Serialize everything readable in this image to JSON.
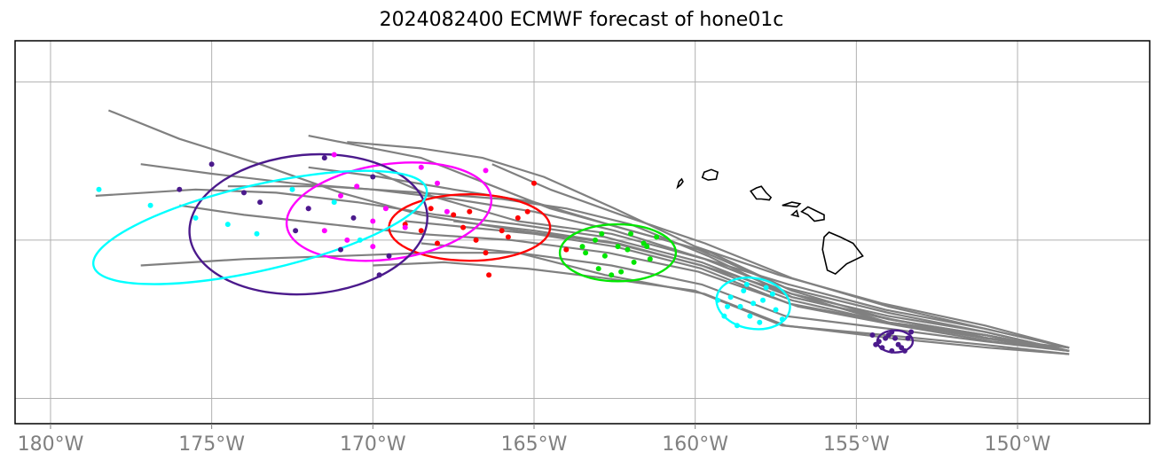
{
  "title": "2024082400 ECMWF forecast of hone01c",
  "chart_data": {
    "type": "map",
    "title": "2024082400 ECMWF forecast of hone01c",
    "projection": "PlateCarree",
    "xlim": [
      -181.1,
      -145.9
    ],
    "ylim": [
      14.2,
      26.3
    ],
    "x_ticks": [
      -180,
      -175,
      -170,
      -165,
      -160,
      -155,
      -150
    ],
    "x_tick_labels": [
      "180°W",
      "175°W",
      "170°W",
      "165°W",
      "160°W",
      "155°W",
      "150°W"
    ],
    "y_gridlines": [
      15,
      20,
      25
    ],
    "grid": true,
    "colors": {
      "track": "#808080",
      "grid": "#b0b0b0",
      "coast": "#000000",
      "day1": "#4b1a8c",
      "day2": "#00ffff",
      "day3": "#00e600",
      "day4": "#ff0000",
      "day5": "#ff00ff",
      "day6": "#4b1a8c",
      "day7": "#00ffff"
    },
    "genesis_point": [
      -148.4,
      16.5
    ],
    "tracks": [
      [
        [
          -148.4,
          16.5
        ],
        [
          -151.0,
          17.0
        ],
        [
          -154.0,
          17.4
        ],
        [
          -157.0,
          18.1
        ],
        [
          -159.8,
          19.2
        ],
        [
          -162.5,
          19.9
        ],
        [
          -165.5,
          20.3
        ],
        [
          -168.5,
          20.8
        ],
        [
          -171.0,
          21.5
        ],
        [
          -173.5,
          22.4
        ],
        [
          -176.0,
          23.2
        ],
        [
          -178.2,
          24.1
        ]
      ],
      [
        [
          -148.4,
          16.5
        ],
        [
          -151.0,
          17.1
        ],
        [
          -154.0,
          17.6
        ],
        [
          -157.0,
          18.3
        ],
        [
          -159.7,
          19.4
        ],
        [
          -162.6,
          20.2
        ],
        [
          -165.5,
          20.6
        ],
        [
          -168.2,
          21.4
        ],
        [
          -170.0,
          22.2
        ]
      ],
      [
        [
          -148.4,
          16.5
        ],
        [
          -150.8,
          16.8
        ],
        [
          -153.7,
          17.3
        ],
        [
          -156.8,
          17.9
        ],
        [
          -159.9,
          19.0
        ],
        [
          -162.7,
          19.6
        ],
        [
          -165.7,
          20.0
        ],
        [
          -168.6,
          20.2
        ],
        [
          -171.3,
          20.5
        ],
        [
          -174.0,
          20.8
        ],
        [
          -176.0,
          21.1
        ]
      ],
      [
        [
          -148.4,
          16.6
        ],
        [
          -151.0,
          17.2
        ],
        [
          -154.1,
          17.8
        ],
        [
          -157.1,
          18.6
        ],
        [
          -160.0,
          19.5
        ],
        [
          -162.5,
          20.3
        ],
        [
          -165.0,
          20.9
        ],
        [
          -167.5,
          21.3
        ],
        [
          -170.0,
          21.6
        ],
        [
          -172.5,
          21.8
        ],
        [
          -175.0,
          22.1
        ],
        [
          -177.2,
          22.4
        ]
      ],
      [
        [
          -148.4,
          16.6
        ],
        [
          -150.9,
          16.9
        ],
        [
          -153.9,
          17.5
        ],
        [
          -157.0,
          18.2
        ],
        [
          -159.8,
          19.3
        ],
        [
          -162.8,
          20.1
        ],
        [
          -165.5,
          20.5
        ],
        [
          -168.0,
          20.8
        ],
        [
          -170.5,
          21.2
        ],
        [
          -173.0,
          21.5
        ],
        [
          -175.5,
          21.6
        ],
        [
          -178.6,
          21.4
        ]
      ],
      [
        [
          -148.4,
          16.5
        ],
        [
          -151.0,
          16.8
        ],
        [
          -154.0,
          17.2
        ],
        [
          -157.2,
          17.6
        ],
        [
          -159.8,
          18.6
        ],
        [
          -162.6,
          19.2
        ],
        [
          -165.5,
          19.6
        ],
        [
          -168.3,
          19.6
        ],
        [
          -171.0,
          19.5
        ],
        [
          -174.0,
          19.4
        ],
        [
          -177.2,
          19.2
        ]
      ],
      [
        [
          -148.4,
          16.4
        ],
        [
          -151.1,
          16.7
        ],
        [
          -154.1,
          17.0
        ],
        [
          -157.3,
          17.3
        ],
        [
          -160.0,
          18.4
        ],
        [
          -162.8,
          18.8
        ],
        [
          -165.2,
          19.1
        ],
        [
          -167.8,
          19.3
        ],
        [
          -170.0,
          19.2
        ]
      ],
      [
        [
          -148.4,
          16.5
        ],
        [
          -151.0,
          17.0
        ],
        [
          -154.0,
          17.5
        ],
        [
          -157.0,
          18.4
        ],
        [
          -159.5,
          19.6
        ],
        [
          -162.0,
          20.3
        ],
        [
          -164.5,
          21.0
        ],
        [
          -166.5,
          21.8
        ],
        [
          -168.5,
          22.6
        ],
        [
          -170.5,
          23.0
        ],
        [
          -172.0,
          23.3
        ]
      ],
      [
        [
          -148.4,
          16.6
        ],
        [
          -151.0,
          17.3
        ],
        [
          -154.2,
          18.0
        ],
        [
          -157.4,
          18.9
        ],
        [
          -160.0,
          19.8
        ],
        [
          -162.5,
          21.0
        ],
        [
          -164.7,
          22.0
        ],
        [
          -166.6,
          22.6
        ],
        [
          -168.5,
          22.9
        ],
        [
          -170.8,
          23.1
        ]
      ],
      [
        [
          -148.4,
          16.5
        ],
        [
          -151.0,
          17.1
        ],
        [
          -154.0,
          17.7
        ],
        [
          -157.2,
          18.5
        ],
        [
          -159.9,
          19.7
        ],
        [
          -162.7,
          20.5
        ],
        [
          -165.0,
          21.2
        ],
        [
          -167.5,
          21.6
        ],
        [
          -169.8,
          22.0
        ],
        [
          -172.0,
          22.3
        ]
      ],
      [
        [
          -148.4,
          16.5
        ],
        [
          -151.0,
          16.9
        ],
        [
          -154.0,
          17.4
        ],
        [
          -157.1,
          18.0
        ],
        [
          -159.8,
          19.1
        ],
        [
          -162.5,
          19.8
        ],
        [
          -165.0,
          20.2
        ],
        [
          -167.0,
          20.4
        ],
        [
          -169.0,
          20.6
        ]
      ],
      [
        [
          -148.4,
          16.5
        ],
        [
          -151.0,
          17.0
        ],
        [
          -154.0,
          17.5
        ],
        [
          -157.0,
          18.2
        ],
        [
          -159.6,
          19.5
        ],
        [
          -162.0,
          20.5
        ],
        [
          -164.0,
          21.0
        ],
        [
          -166.0,
          21.3
        ],
        [
          -168.5,
          21.5
        ],
        [
          -171.5,
          21.7
        ],
        [
          -174.5,
          21.7
        ]
      ],
      [
        [
          -148.4,
          16.4
        ],
        [
          -150.9,
          16.6
        ],
        [
          -153.9,
          16.9
        ],
        [
          -157.2,
          17.3
        ],
        [
          -159.7,
          18.3
        ],
        [
          -162.8,
          18.9
        ],
        [
          -165.5,
          19.6
        ],
        [
          -168.5,
          19.9
        ]
      ],
      [
        [
          -148.4,
          16.5
        ],
        [
          -151.0,
          17.0
        ],
        [
          -154.0,
          17.4
        ],
        [
          -157.0,
          18.3
        ],
        [
          -159.8,
          19.2
        ],
        [
          -162.4,
          19.9
        ],
        [
          -165.0,
          20.3
        ],
        [
          -167.5,
          20.6
        ]
      ],
      [
        [
          -148.4,
          16.6
        ],
        [
          -151.0,
          17.2
        ],
        [
          -154.0,
          17.9
        ],
        [
          -157.0,
          18.8
        ],
        [
          -159.7,
          19.9
        ],
        [
          -162.3,
          20.8
        ],
        [
          -164.5,
          21.6
        ],
        [
          -166.3,
          22.4
        ]
      ]
    ],
    "islands": [
      [
        [
          -160.55,
          21.67
        ],
        [
          -160.45,
          21.75
        ],
        [
          -160.38,
          21.85
        ],
        [
          -160.42,
          21.93
        ],
        [
          -160.5,
          21.85
        ],
        [
          -160.55,
          21.67
        ]
      ],
      [
        [
          -159.78,
          21.98
        ],
        [
          -159.6,
          21.9
        ],
        [
          -159.35,
          21.93
        ],
        [
          -159.3,
          22.15
        ],
        [
          -159.5,
          22.23
        ],
        [
          -159.72,
          22.15
        ],
        [
          -159.78,
          21.98
        ]
      ],
      [
        [
          -158.28,
          21.55
        ],
        [
          -158.1,
          21.3
        ],
        [
          -157.95,
          21.3
        ],
        [
          -157.7,
          21.27
        ],
        [
          -157.65,
          21.35
        ],
        [
          -157.8,
          21.5
        ],
        [
          -157.95,
          21.7
        ],
        [
          -158.1,
          21.65
        ],
        [
          -158.28,
          21.55
        ]
      ],
      [
        [
          -157.3,
          21.1
        ],
        [
          -157.05,
          21.08
        ],
        [
          -156.85,
          21.05
        ],
        [
          -156.75,
          21.15
        ],
        [
          -157.0,
          21.2
        ],
        [
          -157.3,
          21.1
        ]
      ],
      [
        [
          -157.0,
          20.8
        ],
        [
          -156.8,
          20.75
        ],
        [
          -156.85,
          20.93
        ],
        [
          -157.0,
          20.8
        ]
      ],
      [
        [
          -156.7,
          20.9
        ],
        [
          -156.5,
          20.8
        ],
        [
          -156.3,
          20.6
        ],
        [
          -156.0,
          20.65
        ],
        [
          -156.0,
          20.8
        ],
        [
          -156.3,
          20.95
        ],
        [
          -156.5,
          21.05
        ],
        [
          -156.7,
          20.9
        ]
      ],
      [
        [
          -156.05,
          19.7
        ],
        [
          -155.9,
          19.05
        ],
        [
          -155.65,
          18.93
        ],
        [
          -155.3,
          19.25
        ],
        [
          -154.8,
          19.5
        ],
        [
          -155.1,
          19.9
        ],
        [
          -155.5,
          20.1
        ],
        [
          -155.85,
          20.25
        ],
        [
          -156.0,
          20.1
        ],
        [
          -156.05,
          19.7
        ]
      ]
    ],
    "days": [
      {
        "color": "day1",
        "ellipse": {
          "cx": -153.8,
          "cy": 16.8,
          "rx": 0.55,
          "ry": 0.35,
          "angle": 0
        },
        "points": [
          [
            -154.5,
            17.0
          ],
          [
            -154.2,
            16.6
          ],
          [
            -154.0,
            17.0
          ],
          [
            -153.8,
            16.9
          ],
          [
            -153.6,
            16.6
          ],
          [
            -153.4,
            16.9
          ],
          [
            -153.3,
            17.1
          ],
          [
            -153.9,
            16.5
          ],
          [
            -154.3,
            16.8
          ],
          [
            -153.7,
            16.7
          ],
          [
            -153.5,
            16.5
          ],
          [
            -154.4,
            16.7
          ],
          [
            -153.9,
            17.1
          ],
          [
            -154.1,
            16.9
          ]
        ]
      },
      {
        "color": "day2",
        "ellipse": {
          "cx": -158.2,
          "cy": 18.0,
          "rx": 1.15,
          "ry": 0.8,
          "angle": 10
        },
        "points": [
          [
            -158.5,
            18.4
          ],
          [
            -158.2,
            18.0
          ],
          [
            -157.8,
            18.5
          ],
          [
            -159.1,
            17.6
          ],
          [
            -157.5,
            17.8
          ],
          [
            -158.9,
            18.2
          ],
          [
            -158.0,
            17.4
          ],
          [
            -158.6,
            17.9
          ],
          [
            -157.9,
            18.1
          ],
          [
            -158.3,
            17.6
          ],
          [
            -157.6,
            18.3
          ],
          [
            -159.3,
            18.1
          ],
          [
            -158.7,
            17.3
          ],
          [
            -157.3,
            17.5
          ],
          [
            -158.4,
            18.6
          ],
          [
            -159.0,
            17.9
          ]
        ]
      },
      {
        "color": "day3",
        "ellipse": {
          "cx": -162.4,
          "cy": 19.6,
          "rx": 1.8,
          "ry": 0.9,
          "angle": 0
        },
        "points": [
          [
            -163.5,
            19.8
          ],
          [
            -162.8,
            19.5
          ],
          [
            -161.5,
            19.8
          ],
          [
            -162.0,
            20.2
          ],
          [
            -163.0,
            19.1
          ],
          [
            -161.2,
            20.1
          ],
          [
            -162.4,
            19.8
          ],
          [
            -162.9,
            20.2
          ],
          [
            -161.9,
            19.3
          ],
          [
            -163.4,
            19.6
          ],
          [
            -162.6,
            18.9
          ],
          [
            -161.4,
            19.4
          ],
          [
            -162.1,
            19.7
          ],
          [
            -163.1,
            20.0
          ],
          [
            -162.3,
            19.0
          ],
          [
            -161.6,
            19.9
          ]
        ]
      },
      {
        "color": "day4",
        "ellipse": {
          "cx": -167.0,
          "cy": 20.4,
          "rx": 2.5,
          "ry": 1.05,
          "angle": 0
        },
        "points": [
          [
            -168.5,
            20.3
          ],
          [
            -167.5,
            20.8
          ],
          [
            -166.8,
            20.0
          ],
          [
            -165.5,
            20.7
          ],
          [
            -167.0,
            20.9
          ],
          [
            -168.0,
            19.9
          ],
          [
            -166.0,
            20.3
          ],
          [
            -165.0,
            21.8
          ],
          [
            -166.5,
            19.6
          ],
          [
            -168.2,
            21.0
          ],
          [
            -167.2,
            20.4
          ],
          [
            -165.8,
            20.1
          ],
          [
            -164.0,
            19.7
          ],
          [
            -166.4,
            18.9
          ],
          [
            -169.0,
            20.5
          ],
          [
            -165.2,
            20.9
          ]
        ]
      },
      {
        "color": "day5",
        "ellipse": {
          "cx": -169.5,
          "cy": 20.9,
          "rx": 3.2,
          "ry": 1.5,
          "angle": -8
        },
        "points": [
          [
            -172.0,
            21.0
          ],
          [
            -171.0,
            21.4
          ],
          [
            -168.5,
            22.3
          ],
          [
            -170.0,
            20.6
          ],
          [
            -171.5,
            20.3
          ],
          [
            -170.5,
            21.7
          ],
          [
            -169.0,
            20.4
          ],
          [
            -168.0,
            21.8
          ],
          [
            -170.0,
            19.8
          ],
          [
            -167.7,
            20.9
          ],
          [
            -170.8,
            20.0
          ],
          [
            -166.5,
            22.2
          ],
          [
            -171.2,
            22.7
          ],
          [
            -169.6,
            21.0
          ]
        ]
      },
      {
        "color": "day6",
        "ellipse": {
          "cx": -172.0,
          "cy": 20.5,
          "rx": 3.7,
          "ry": 2.2,
          "angle": -5
        },
        "points": [
          [
            -175.0,
            22.4
          ],
          [
            -173.5,
            21.2
          ],
          [
            -171.5,
            22.6
          ],
          [
            -172.0,
            21.0
          ],
          [
            -170.0,
            22.0
          ],
          [
            -174.0,
            21.5
          ],
          [
            -171.0,
            19.7
          ],
          [
            -169.5,
            19.5
          ],
          [
            -176.0,
            21.6
          ],
          [
            -169.8,
            18.9
          ],
          [
            -172.4,
            20.3
          ],
          [
            -170.6,
            20.7
          ]
        ]
      },
      {
        "color": "day7",
        "ellipse": {
          "cx": -173.5,
          "cy": 20.4,
          "rx": 5.3,
          "ry": 1.35,
          "angle": -13
        },
        "points": [
          [
            -178.5,
            21.6
          ],
          [
            -175.5,
            20.7
          ],
          [
            -174.5,
            20.5
          ],
          [
            -171.2,
            21.2
          ],
          [
            -172.5,
            21.6
          ],
          [
            -176.9,
            21.1
          ],
          [
            -173.6,
            20.2
          ],
          [
            -170.4,
            20.0
          ]
        ]
      }
    ]
  }
}
